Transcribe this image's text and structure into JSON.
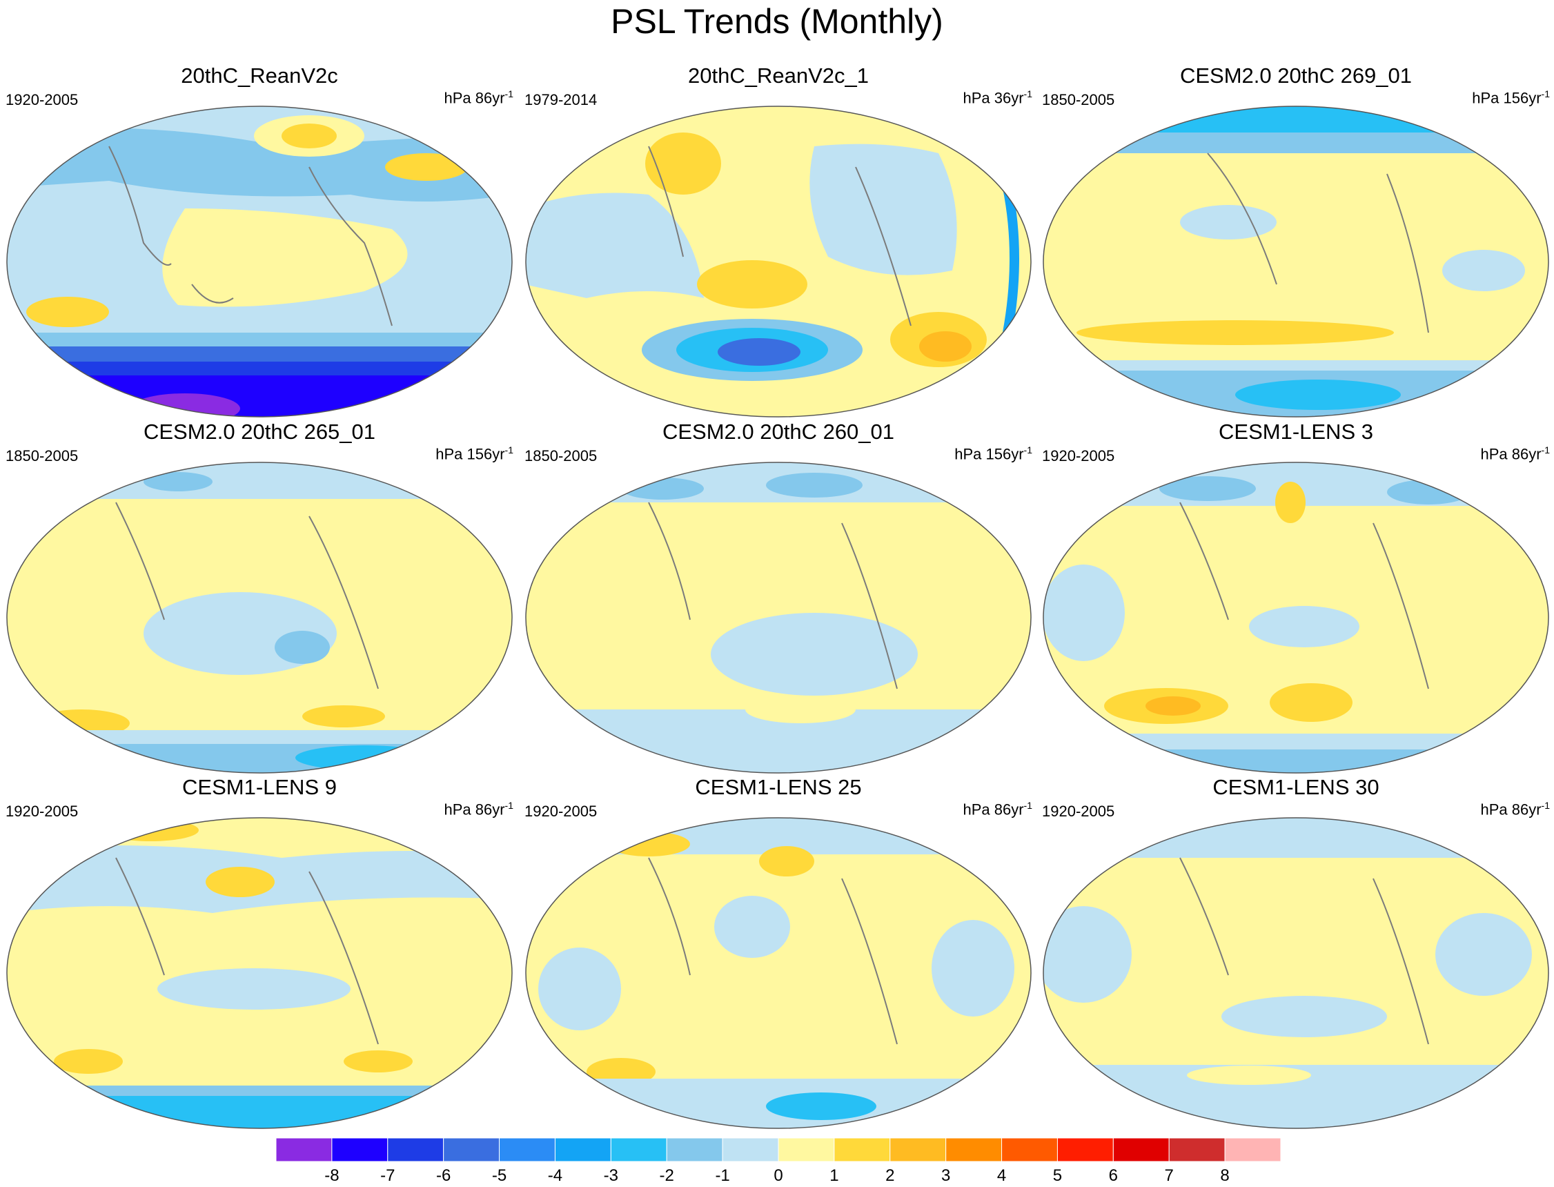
{
  "title": "PSL Trends (Monthly)",
  "panels": [
    {
      "title": "20thC_ReanV2c",
      "period": "1920-2005",
      "units": "hPa 86yr",
      "exp": "-1"
    },
    {
      "title": "20thC_ReanV2c_1",
      "period": "1979-2014",
      "units": "hPa 36yr",
      "exp": "-1"
    },
    {
      "title": "CESM2.0 20thC 269_01",
      "period": "1850-2005",
      "units": "hPa 156yr",
      "exp": "-1"
    },
    {
      "title": "CESM2.0 20thC 265_01",
      "period": "1850-2005",
      "units": "hPa 156yr",
      "exp": "-1"
    },
    {
      "title": "CESM2.0 20thC 260_01",
      "period": "1850-2005",
      "units": "hPa 156yr",
      "exp": "-1"
    },
    {
      "title": "CESM1-LENS 3",
      "period": "1920-2005",
      "units": "hPa 86yr",
      "exp": "-1"
    },
    {
      "title": "CESM1-LENS 9",
      "period": "1920-2005",
      "units": "hPa 86yr",
      "exp": "-1"
    },
    {
      "title": "CESM1-LENS 25",
      "period": "1920-2005",
      "units": "hPa 86yr",
      "exp": "-1"
    },
    {
      "title": "CESM1-LENS 30",
      "period": "1920-2005",
      "units": "hPa 86yr",
      "exp": "-1"
    }
  ],
  "colorbar": {
    "labels": [
      "-8",
      "-7",
      "-6",
      "-5",
      "-4",
      "-3",
      "-2",
      "-1",
      "0",
      "1",
      "2",
      "3",
      "4",
      "5",
      "6",
      "7",
      "8"
    ],
    "colors": [
      "#8a2be2",
      "#1e00ff",
      "#1e3ce6",
      "#3a6ee0",
      "#2b8cf5",
      "#13a4f5",
      "#27c0f5",
      "#84c8ec",
      "#bfe2f3",
      "#fff8a0",
      "#ffd93a",
      "#ffbb22",
      "#ff8c00",
      "#ff5a00",
      "#ff1e00",
      "#e00000",
      "#cf2d2d",
      "#ffb4b4"
    ]
  },
  "colors": {
    "neg1": "#bfe2f3",
    "neg2": "#84c8ec",
    "neg3": "#27c0f5",
    "neg4": "#13a4f5",
    "neg5": "#2b8cf5",
    "neg6": "#3a6ee0",
    "neg7": "#1e3ce6",
    "neg8": "#1e00ff",
    "neg9": "#8a2be2",
    "pos1": "#fff8a0",
    "pos2": "#ffd93a",
    "pos3": "#ffbb22",
    "coast": "#7b7b7b"
  }
}
